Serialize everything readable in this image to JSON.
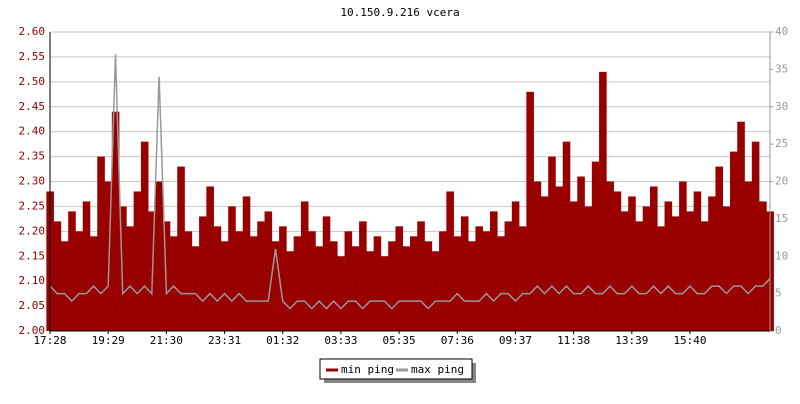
{
  "chart_data": {
    "type": "line",
    "title": "10.150.9.216 vcera",
    "categories": [
      "17:28",
      null,
      null,
      null,
      null,
      null,
      null,
      null,
      "19:29",
      null,
      null,
      null,
      null,
      null,
      null,
      null,
      "21:30",
      null,
      null,
      null,
      null,
      null,
      null,
      null,
      "23:31",
      null,
      null,
      null,
      null,
      null,
      null,
      null,
      "01:32",
      null,
      null,
      null,
      null,
      null,
      null,
      null,
      "03:33",
      null,
      null,
      null,
      null,
      null,
      null,
      null,
      "05:35",
      null,
      null,
      null,
      null,
      null,
      null,
      null,
      "07:36",
      null,
      null,
      null,
      null,
      null,
      null,
      null,
      "09:37",
      null,
      null,
      null,
      null,
      null,
      null,
      null,
      "11:38",
      null,
      null,
      null,
      null,
      null,
      null,
      null,
      "13:39",
      null,
      null,
      null,
      null,
      null,
      null,
      null,
      "15:40",
      null,
      null,
      null,
      null,
      null,
      null,
      null,
      null,
      null,
      null,
      null
    ],
    "series": [
      {
        "name": "min ping",
        "color": "#990000",
        "values": [
          2.28,
          2.22,
          2.18,
          2.24,
          2.2,
          2.26,
          2.19,
          2.35,
          2.3,
          2.44,
          2.25,
          2.21,
          2.28,
          2.38,
          2.24,
          2.3,
          2.22,
          2.19,
          2.33,
          2.2,
          2.17,
          2.23,
          2.29,
          2.21,
          2.18,
          2.25,
          2.2,
          2.27,
          2.19,
          2.22,
          2.24,
          2.18,
          2.21,
          2.16,
          2.19,
          2.26,
          2.2,
          2.17,
          2.23,
          2.18,
          2.15,
          2.2,
          2.17,
          2.22,
          2.16,
          2.19,
          2.15,
          2.18,
          2.21,
          2.17,
          2.19,
          2.22,
          2.18,
          2.16,
          2.2,
          2.28,
          2.19,
          2.23,
          2.18,
          2.21,
          2.2,
          2.24,
          2.19,
          2.22,
          2.26,
          2.21,
          2.48,
          2.3,
          2.27,
          2.35,
          2.29,
          2.38,
          2.26,
          2.31,
          2.25,
          2.34,
          2.52,
          2.3,
          2.28,
          2.24,
          2.27,
          2.22,
          2.25,
          2.29,
          2.21,
          2.26,
          2.23,
          2.3,
          2.24,
          2.28,
          2.22,
          2.27,
          2.33,
          2.25,
          2.36,
          2.42,
          2.3,
          2.38,
          2.26,
          2.24
        ]
      },
      {
        "name": "max ping",
        "color": "#999999",
        "axis": "y2",
        "values": [
          6,
          5,
          5,
          4,
          5,
          5,
          6,
          5,
          6,
          37,
          5,
          6,
          5,
          6,
          5,
          34,
          5,
          6,
          5,
          5,
          5,
          4,
          5,
          4,
          5,
          4,
          5,
          4,
          4,
          4,
          4,
          11,
          4,
          3,
          4,
          4,
          3,
          4,
          3,
          4,
          3,
          4,
          4,
          3,
          4,
          4,
          4,
          3,
          4,
          4,
          4,
          4,
          3,
          4,
          4,
          4,
          5,
          4,
          4,
          4,
          5,
          4,
          5,
          5,
          4,
          5,
          5,
          6,
          5,
          6,
          5,
          6,
          5,
          5,
          6,
          5,
          5,
          6,
          5,
          5,
          6,
          5,
          5,
          6,
          5,
          6,
          5,
          5,
          6,
          5,
          5,
          6,
          6,
          5,
          6,
          6,
          5,
          6,
          6,
          7
        ]
      }
    ],
    "ylim": [
      2.0,
      2.6
    ],
    "yticks": [
      {
        "value": 2.0,
        "label": "2.00"
      },
      {
        "value": 2.05,
        "label": "2.05"
      },
      {
        "value": 2.1,
        "label": "2.10"
      },
      {
        "value": 2.15,
        "label": "2.15"
      },
      {
        "value": 2.2,
        "label": "2.20"
      },
      {
        "value": 2.25,
        "label": "2.25"
      },
      {
        "value": 2.3,
        "label": "2.30"
      },
      {
        "value": 2.35,
        "label": "2.35"
      },
      {
        "value": 2.4,
        "label": "2.40"
      },
      {
        "value": 2.45,
        "label": "2.45"
      },
      {
        "value": 2.5,
        "label": "2.50"
      },
      {
        "value": 2.55,
        "label": "2.55"
      },
      {
        "value": 2.6,
        "label": "2.60"
      }
    ],
    "y2lim": [
      0,
      40
    ],
    "y2ticks": [
      0,
      5,
      10,
      15,
      20,
      25,
      30,
      35,
      40
    ],
    "grid": true,
    "legend": "bottom"
  }
}
